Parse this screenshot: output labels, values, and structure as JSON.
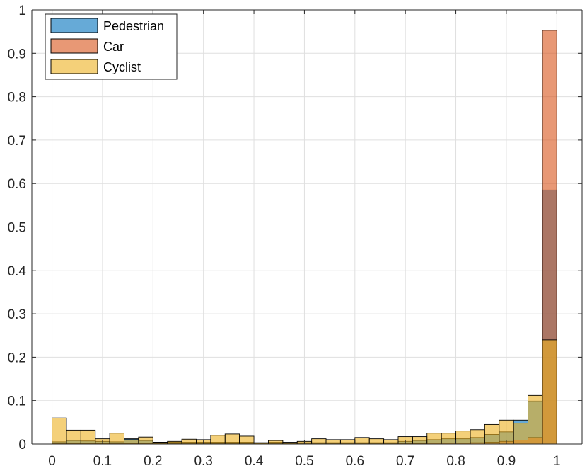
{
  "chart_data": {
    "type": "bar",
    "histogram": true,
    "bin_width": 0.02857,
    "bin_centers": [
      0.0143,
      0.0429,
      0.0714,
      0.1,
      0.1286,
      0.1571,
      0.1857,
      0.2143,
      0.2429,
      0.2714,
      0.3,
      0.3286,
      0.3571,
      0.3857,
      0.4143,
      0.4429,
      0.4714,
      0.5,
      0.5286,
      0.5571,
      0.5857,
      0.6143,
      0.6429,
      0.6714,
      0.7,
      0.7286,
      0.7571,
      0.7857,
      0.8143,
      0.8429,
      0.8714,
      0.9,
      0.9286,
      0.9571,
      0.9857
    ],
    "series": [
      {
        "name": "Pedestrian",
        "color": "#0072BD",
        "values": [
          0.005,
          0.008,
          0.007,
          0.006,
          0.005,
          0.012,
          0.008,
          0.004,
          0.004,
          0.004,
          0.004,
          0.004,
          0.004,
          0.004,
          0.002,
          0.004,
          0.002,
          0.003,
          0.003,
          0.003,
          0.003,
          0.003,
          0.003,
          0.003,
          0.006,
          0.008,
          0.01,
          0.012,
          0.012,
          0.015,
          0.022,
          0.028,
          0.055,
          0.098,
          0.585
        ]
      },
      {
        "name": "Car",
        "color": "#D95319",
        "values": [
          0.001,
          0.001,
          0.001,
          0.001,
          0.001,
          0.001,
          0.001,
          0.001,
          0.001,
          0.001,
          0.001,
          0.001,
          0.001,
          0.001,
          0.001,
          0.001,
          0.001,
          0.001,
          0.001,
          0.001,
          0.001,
          0.001,
          0.001,
          0.001,
          0.001,
          0.001,
          0.002,
          0.002,
          0.002,
          0.003,
          0.004,
          0.006,
          0.009,
          0.015,
          0.953
        ]
      },
      {
        "name": "Cyclist",
        "color": "#EDB120",
        "values": [
          0.06,
          0.032,
          0.032,
          0.012,
          0.025,
          0.01,
          0.016,
          0.004,
          0.006,
          0.011,
          0.01,
          0.02,
          0.023,
          0.018,
          0.003,
          0.008,
          0.004,
          0.006,
          0.012,
          0.01,
          0.01,
          0.015,
          0.012,
          0.01,
          0.017,
          0.017,
          0.025,
          0.025,
          0.03,
          0.033,
          0.045,
          0.055,
          0.048,
          0.112,
          0.24
        ]
      }
    ],
    "title": "",
    "xlabel": "",
    "ylabel": "",
    "xlim": [
      -0.04,
      1.05
    ],
    "ylim": [
      0,
      1
    ],
    "xticks": [
      0,
      0.1,
      0.2,
      0.3,
      0.4,
      0.5,
      0.6,
      0.7,
      0.8,
      0.9,
      1
    ],
    "xtick_labels": [
      "0",
      "0.1",
      "0.2",
      "0.3",
      "0.4",
      "0.5",
      "0.6",
      "0.7",
      "0.8",
      "0.9",
      "1"
    ],
    "yticks": [
      0,
      0.1,
      0.2,
      0.3,
      0.4,
      0.5,
      0.6,
      0.7,
      0.8,
      0.9,
      1
    ],
    "ytick_labels": [
      "0",
      "0.1",
      "0.2",
      "0.3",
      "0.4",
      "0.5",
      "0.6",
      "0.7",
      "0.8",
      "0.9",
      "1"
    ],
    "grid": true,
    "legend_position": "top-left",
    "bar_opacity": 0.6
  }
}
